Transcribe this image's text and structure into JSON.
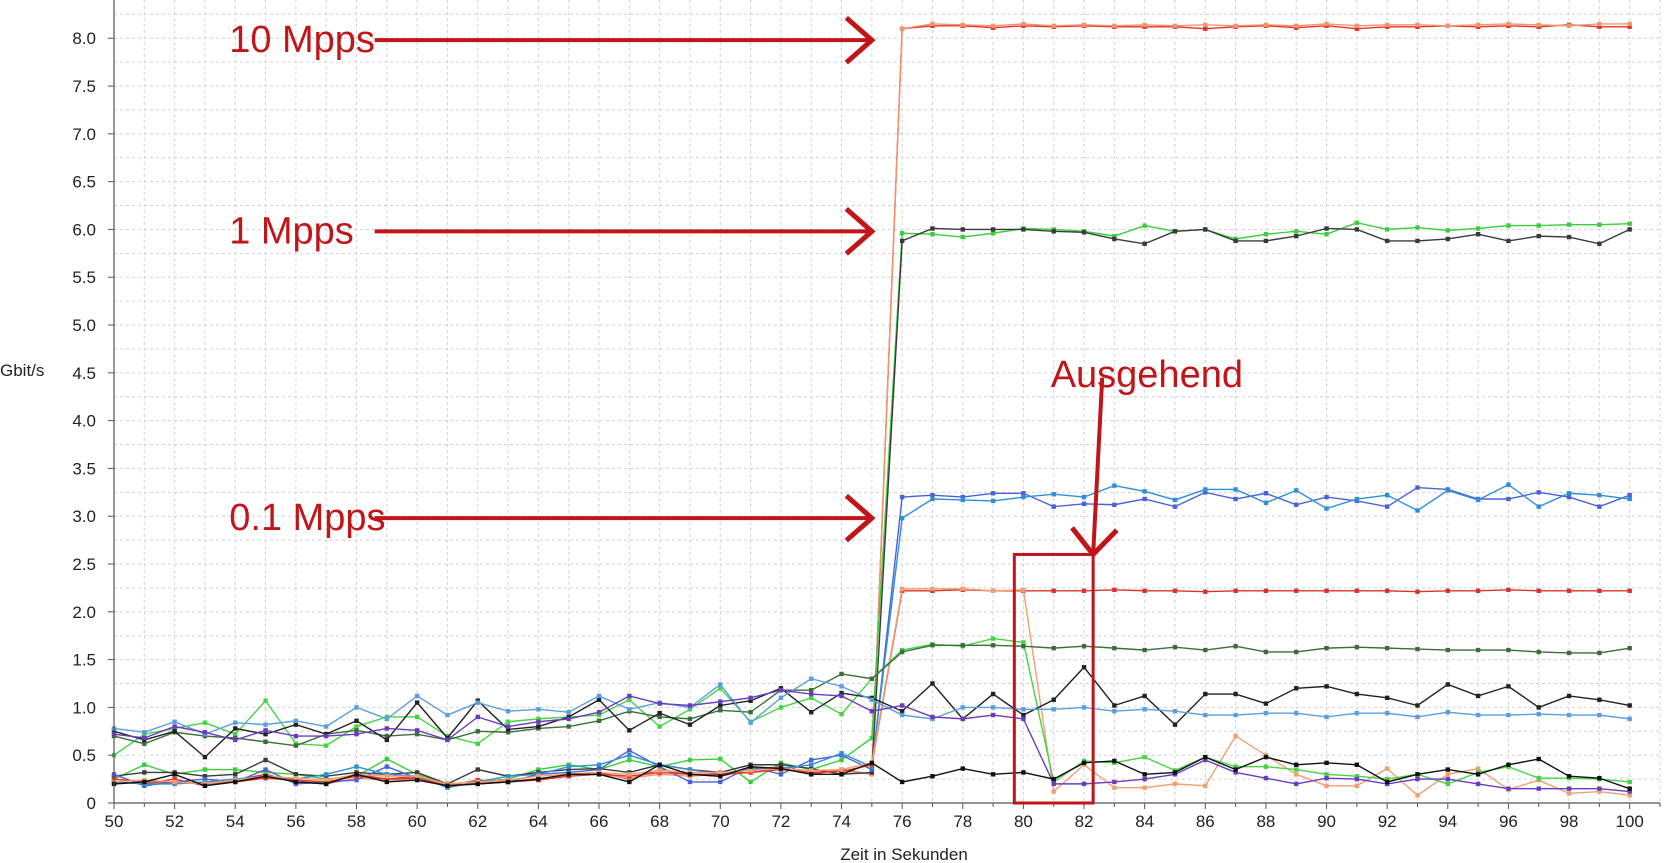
{
  "chart_data": {
    "type": "line",
    "title": "",
    "xlabel": "Zeit in Sekunden",
    "ylabel": "Gbit/s",
    "xlim": [
      50,
      101
    ],
    "ylim": [
      0,
      8.4
    ],
    "grid": true,
    "x_ticks": [
      50,
      52,
      54,
      56,
      58,
      60,
      62,
      64,
      66,
      68,
      70,
      72,
      74,
      76,
      78,
      80,
      82,
      84,
      86,
      88,
      90,
      92,
      94,
      96,
      98,
      100
    ],
    "y_ticks": [
      0,
      0.5,
      1.0,
      1.5,
      2.0,
      2.5,
      3.0,
      3.5,
      4.0,
      4.5,
      5.0,
      5.5,
      6.0,
      6.5,
      7.0,
      7.5,
      8.0
    ],
    "y_tick_labels": [
      "0",
      "0.5",
      "1.0",
      "1.5",
      "2.0",
      "2.5",
      "3.0",
      "3.5",
      "4.0",
      "4.5",
      "5.0",
      "5.5",
      "6.0",
      "6.5",
      "7.0",
      "7.5",
      "8.0"
    ],
    "x": [
      50,
      51,
      52,
      53,
      54,
      55,
      56,
      57,
      58,
      59,
      60,
      61,
      62,
      63,
      64,
      65,
      66,
      67,
      68,
      69,
      70,
      71,
      72,
      73,
      74,
      75,
      76,
      77,
      78,
      79,
      80,
      81,
      82,
      83,
      84,
      85,
      86,
      87,
      88,
      89,
      90,
      91,
      92,
      93,
      94,
      95,
      96,
      97,
      98,
      99,
      100
    ],
    "series": [
      {
        "color": "#e8302a",
        "values": [
          0.22,
          0.2,
          0.25,
          0.18,
          0.24,
          0.3,
          0.22,
          0.2,
          0.3,
          0.25,
          0.28,
          0.18,
          0.24,
          0.22,
          0.25,
          0.3,
          0.32,
          0.25,
          0.35,
          0.3,
          0.28,
          0.35,
          0.38,
          0.3,
          0.35,
          0.3,
          8.1,
          8.13,
          8.13,
          8.11,
          8.13,
          8.12,
          8.13,
          8.12,
          8.12,
          8.12,
          8.1,
          8.12,
          8.13,
          8.11,
          8.13,
          8.1,
          8.12,
          8.12,
          8.13,
          8.12,
          8.13,
          8.12,
          8.14,
          8.12,
          8.12
        ]
      },
      {
        "color": "#f0956a",
        "values": [
          0.2,
          0.22,
          0.2,
          0.22,
          0.24,
          0.26,
          0.24,
          0.2,
          0.26,
          0.24,
          0.25,
          0.2,
          0.22,
          0.22,
          0.26,
          0.28,
          0.3,
          0.26,
          0.3,
          0.28,
          0.3,
          0.32,
          0.36,
          0.32,
          0.34,
          0.3,
          8.1,
          8.15,
          8.14,
          8.13,
          8.15,
          8.13,
          8.14,
          8.13,
          8.14,
          8.13,
          8.14,
          8.13,
          8.14,
          8.13,
          8.15,
          8.13,
          8.14,
          8.14,
          8.13,
          8.14,
          8.15,
          8.14,
          8.13,
          8.15,
          8.15
        ]
      },
      {
        "color": "#3ccd3c",
        "values": [
          0.25,
          0.4,
          0.3,
          0.35,
          0.35,
          0.32,
          0.3,
          0.25,
          0.28,
          0.46,
          0.3,
          0.2,
          0.22,
          0.25,
          0.35,
          0.4,
          0.35,
          0.45,
          0.38,
          0.45,
          0.46,
          0.22,
          0.42,
          0.35,
          0.45,
          0.68,
          5.96,
          5.95,
          5.92,
          5.96,
          6.01,
          6.0,
          5.98,
          5.93,
          6.04,
          5.98,
          6.0,
          5.9,
          5.95,
          5.98,
          5.95,
          6.07,
          6.0,
          6.02,
          5.99,
          6.01,
          6.04,
          6.04,
          6.05,
          6.05,
          6.06
        ]
      },
      {
        "color": "#3a3a3a",
        "values": [
          0.28,
          0.32,
          0.32,
          0.28,
          0.3,
          0.45,
          0.3,
          0.28,
          0.32,
          0.3,
          0.32,
          0.2,
          0.35,
          0.28,
          0.32,
          0.35,
          0.36,
          0.32,
          0.4,
          0.35,
          0.32,
          0.4,
          0.4,
          0.36,
          0.3,
          0.32,
          5.88,
          6.01,
          6.0,
          6.0,
          6.0,
          5.98,
          5.97,
          5.9,
          5.85,
          5.98,
          6.0,
          5.88,
          5.88,
          5.93,
          6.01,
          6.0,
          5.88,
          5.88,
          5.9,
          5.95,
          5.88,
          5.93,
          5.92,
          5.85,
          6.0
        ]
      },
      {
        "color": "#4a62d8",
        "values": [
          0.3,
          0.18,
          0.22,
          0.25,
          0.22,
          0.35,
          0.2,
          0.22,
          0.24,
          0.38,
          0.26,
          0.18,
          0.2,
          0.22,
          0.3,
          0.32,
          0.35,
          0.55,
          0.38,
          0.22,
          0.22,
          0.38,
          0.3,
          0.45,
          0.5,
          0.35,
          3.2,
          3.22,
          3.2,
          3.24,
          3.24,
          3.1,
          3.13,
          3.12,
          3.18,
          3.1,
          3.25,
          3.18,
          3.24,
          3.12,
          3.2,
          3.16,
          3.1,
          3.3,
          3.28,
          3.18,
          3.18,
          3.25,
          3.2,
          3.1,
          3.22
        ]
      },
      {
        "color": "#2e8fd6",
        "values": [
          0.22,
          0.2,
          0.2,
          0.22,
          0.25,
          0.28,
          0.25,
          0.3,
          0.38,
          0.3,
          0.28,
          0.16,
          0.22,
          0.28,
          0.3,
          0.38,
          0.4,
          0.5,
          0.4,
          0.35,
          0.3,
          0.35,
          0.36,
          0.4,
          0.52,
          0.38,
          2.98,
          3.18,
          3.17,
          3.16,
          3.2,
          3.23,
          3.2,
          3.32,
          3.26,
          3.17,
          3.28,
          3.28,
          3.14,
          3.27,
          3.08,
          3.18,
          3.22,
          3.06,
          3.27,
          3.17,
          3.33,
          3.1,
          3.24,
          3.22,
          3.18
        ]
      },
      {
        "color": "#d8342c",
        "values": [
          0.25,
          0.22,
          0.22,
          0.2,
          0.22,
          0.26,
          0.24,
          0.22,
          0.28,
          0.25,
          0.26,
          0.18,
          0.2,
          0.22,
          0.24,
          0.28,
          0.3,
          0.28,
          0.32,
          0.3,
          0.3,
          0.32,
          0.35,
          0.32,
          0.33,
          0.4,
          2.22,
          2.22,
          2.23,
          2.22,
          2.22,
          2.22,
          2.22,
          2.23,
          2.22,
          2.22,
          2.21,
          2.22,
          2.22,
          2.22,
          2.22,
          2.22,
          2.22,
          2.21,
          2.22,
          2.22,
          2.23,
          2.22,
          2.22,
          2.22,
          2.22
        ]
      },
      {
        "color": "#f0a070",
        "values": [
          0.22,
          0.24,
          0.22,
          0.2,
          0.24,
          0.28,
          0.26,
          0.24,
          0.3,
          0.28,
          0.28,
          0.2,
          0.22,
          0.24,
          0.28,
          0.3,
          0.32,
          0.3,
          0.34,
          0.32,
          0.32,
          0.34,
          0.36,
          0.34,
          0.35,
          0.42,
          2.24,
          2.24,
          2.24,
          2.22,
          2.23,
          0.12,
          0.4,
          0.16,
          0.16,
          0.2,
          0.18,
          0.7,
          0.5,
          0.3,
          0.18,
          0.18,
          0.36,
          0.08,
          0.3,
          0.36,
          0.14,
          0.24,
          0.1,
          0.12,
          0.08
        ]
      },
      {
        "color": "#44d444",
        "values": [
          0.5,
          0.72,
          0.78,
          0.84,
          0.72,
          1.07,
          0.62,
          0.6,
          0.8,
          0.9,
          0.9,
          0.7,
          0.62,
          0.85,
          0.88,
          0.9,
          0.92,
          1.08,
          0.8,
          0.98,
          1.2,
          0.85,
          1.0,
          1.1,
          0.93,
          1.3,
          1.6,
          1.66,
          1.64,
          1.72,
          1.68,
          0.22,
          0.44,
          0.42,
          0.48,
          0.34,
          0.48,
          0.38,
          0.38,
          0.35,
          0.3,
          0.28,
          0.25,
          0.3,
          0.2,
          0.32,
          0.38,
          0.26,
          0.26,
          0.25,
          0.22
        ]
      },
      {
        "color": "#3c6e3c",
        "values": [
          0.7,
          0.62,
          0.74,
          0.7,
          0.68,
          0.64,
          0.6,
          0.72,
          0.76,
          0.7,
          0.72,
          0.66,
          0.75,
          0.74,
          0.78,
          0.8,
          0.86,
          0.96,
          0.9,
          0.88,
          0.97,
          0.95,
          1.18,
          1.18,
          1.35,
          1.3,
          1.58,
          1.65,
          1.65,
          1.65,
          1.64,
          1.62,
          1.64,
          1.62,
          1.6,
          1.63,
          1.6,
          1.64,
          1.58,
          1.58,
          1.62,
          1.63,
          1.62,
          1.61,
          1.6,
          1.6,
          1.6,
          1.58,
          1.57,
          1.57,
          1.62
        ]
      },
      {
        "color": "#222222",
        "values": [
          0.75,
          0.66,
          0.75,
          0.48,
          0.78,
          0.72,
          0.82,
          0.72,
          0.86,
          0.66,
          1.05,
          0.68,
          1.07,
          0.77,
          0.8,
          0.9,
          1.08,
          0.76,
          0.94,
          0.82,
          1.02,
          1.07,
          1.2,
          0.95,
          1.15,
          1.1,
          0.96,
          1.25,
          0.88,
          1.14,
          0.92,
          1.08,
          1.42,
          1.02,
          1.12,
          0.82,
          1.14,
          1.14,
          1.04,
          1.2,
          1.22,
          1.14,
          1.1,
          1.02,
          1.24,
          1.12,
          1.22,
          1.0,
          1.12,
          1.08,
          1.02
        ]
      },
      {
        "color": "#5a9ee0",
        "values": [
          0.78,
          0.74,
          0.85,
          0.72,
          0.84,
          0.82,
          0.86,
          0.8,
          1.0,
          0.88,
          1.12,
          0.92,
          1.05,
          0.96,
          0.98,
          0.95,
          1.12,
          0.98,
          1.05,
          1.0,
          1.24,
          0.84,
          1.1,
          1.3,
          1.22,
          1.08,
          0.92,
          0.88,
          1.0,
          1.0,
          0.98,
          0.98,
          1.0,
          0.96,
          0.98,
          0.96,
          0.92,
          0.92,
          0.94,
          0.94,
          0.9,
          0.94,
          0.94,
          0.9,
          0.95,
          0.92,
          0.92,
          0.93,
          0.92,
          0.92,
          0.88
        ]
      },
      {
        "color": "#6a3cc0",
        "values": [
          0.72,
          0.68,
          0.8,
          0.74,
          0.66,
          0.76,
          0.7,
          0.7,
          0.72,
          0.78,
          0.76,
          0.66,
          0.9,
          0.8,
          0.85,
          0.88,
          0.95,
          1.12,
          1.04,
          1.02,
          1.06,
          1.1,
          1.18,
          1.14,
          1.12,
          0.96,
          1.02,
          0.9,
          0.88,
          0.92,
          0.88,
          0.2,
          0.2,
          0.22,
          0.25,
          0.3,
          0.45,
          0.32,
          0.26,
          0.2,
          0.26,
          0.25,
          0.2,
          0.25,
          0.25,
          0.2,
          0.15,
          0.15,
          0.15,
          0.15,
          0.12
        ]
      },
      {
        "color": "#111111",
        "values": [
          0.2,
          0.22,
          0.3,
          0.18,
          0.22,
          0.28,
          0.22,
          0.2,
          0.3,
          0.22,
          0.24,
          0.18,
          0.2,
          0.22,
          0.25,
          0.3,
          0.3,
          0.22,
          0.4,
          0.3,
          0.28,
          0.38,
          0.36,
          0.3,
          0.3,
          0.42,
          0.22,
          0.28,
          0.36,
          0.3,
          0.32,
          0.25,
          0.42,
          0.44,
          0.3,
          0.32,
          0.48,
          0.35,
          0.48,
          0.4,
          0.42,
          0.4,
          0.22,
          0.3,
          0.35,
          0.3,
          0.4,
          0.46,
          0.28,
          0.26,
          0.15
        ]
      }
    ],
    "annotations": [
      {
        "text": "10 Mpps",
        "label_x": 53.8,
        "label_y": 8.0,
        "arrow_from": [
          58.6,
          7.98
        ],
        "arrow_to": [
          75.0,
          7.98
        ]
      },
      {
        "text": "1 Mpps",
        "label_x": 53.8,
        "label_y": 6.0,
        "arrow_from": [
          58.6,
          5.98
        ],
        "arrow_to": [
          75.0,
          5.98
        ]
      },
      {
        "text": "0.1 Mpps",
        "label_x": 53.8,
        "label_y": 3.0,
        "arrow_from": [
          58.6,
          2.98
        ],
        "arrow_to": [
          75.0,
          2.98
        ]
      },
      {
        "text": "Ausgehend",
        "label_x": 80.9,
        "label_y": 4.5,
        "arrow_from": [
          82.6,
          4.45
        ],
        "arrow_to": [
          82.3,
          2.6
        ]
      }
    ],
    "highlight_box": {
      "x0": 79.7,
      "x1": 82.3,
      "y0": 0.0,
      "y1": 2.6,
      "color": "#c0161a"
    }
  }
}
